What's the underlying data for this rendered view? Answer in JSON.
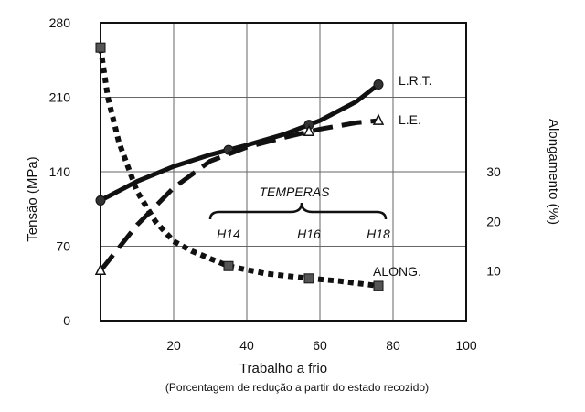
{
  "chart_data": {
    "type": "line",
    "xlabel": "Trabalho a frio",
    "xlabel_sub": "(Porcentagem de redução a partir do estado recozido)",
    "ylabel_left": "Tensão (MPa)",
    "ylabel_right": "Alongamento (%)",
    "xlim": [
      0,
      100
    ],
    "ylim_left": [
      0,
      280
    ],
    "ylim_right": [
      0,
      60
    ],
    "x_ticks": [
      "20",
      "40",
      "60",
      "80",
      "100"
    ],
    "y_ticks_left": [
      "0",
      "70",
      "140",
      "210",
      "280"
    ],
    "y_ticks_right": [
      "10",
      "20",
      "30"
    ],
    "grid": true,
    "series": [
      {
        "name": "L.R.T.",
        "axis": "left",
        "style": "solid",
        "marker": "circle",
        "x": [
          0,
          10,
          20,
          30,
          40,
          50,
          60,
          70,
          76
        ],
        "y": [
          113,
          131,
          145,
          156,
          165,
          175,
          188,
          206,
          222
        ],
        "marker_x": [
          0,
          35,
          57,
          76
        ]
      },
      {
        "name": "L.E.",
        "axis": "left",
        "style": "dashed",
        "marker": "triangle",
        "x": [
          0,
          10,
          20,
          30,
          40,
          50,
          60,
          70,
          76
        ],
        "y": [
          47,
          90,
          125,
          150,
          163,
          172,
          180,
          186,
          188
        ],
        "marker_x": [
          0,
          57,
          76
        ]
      },
      {
        "name": "ALONG.",
        "axis": "right",
        "style": "dotted",
        "marker": "square",
        "x": [
          0,
          2,
          5,
          10,
          15,
          20,
          25,
          30,
          35,
          45,
          57,
          65,
          76
        ],
        "y": [
          55,
          45,
          36,
          26,
          20,
          16,
          14,
          12.5,
          11,
          9.5,
          8.5,
          8,
          7
        ],
        "marker_x": [
          0,
          35,
          57,
          76
        ]
      }
    ],
    "annotations": {
      "tempers_title": "TEMPERAS",
      "tempers": [
        {
          "label": "H14",
          "x": 35
        },
        {
          "label": "H16",
          "x": 57
        },
        {
          "label": "H18",
          "x": 76
        }
      ]
    }
  }
}
